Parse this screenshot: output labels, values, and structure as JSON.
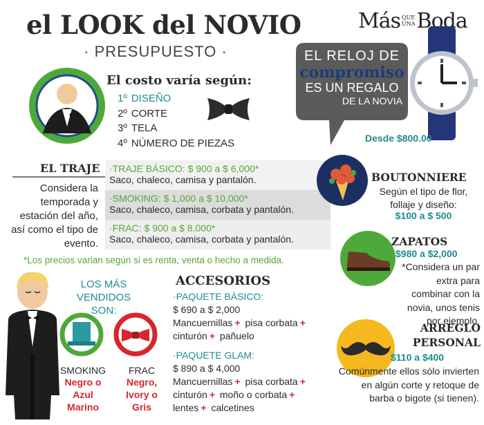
{
  "header": {
    "title": "el LOOK del NOVIO",
    "subtitle": "· PRESUPUESTO ·",
    "brand": {
      "first": "Más",
      "small_top": "QUE",
      "small_bottom": "UNA",
      "last": "Boda"
    }
  },
  "costo": {
    "title": "El costo varía según:",
    "items": [
      {
        "n": "1º",
        "label": "DISEÑO"
      },
      {
        "n": "2º",
        "label": "CORTE"
      },
      {
        "n": "3º",
        "label": "TELA"
      },
      {
        "n": "4º",
        "label": "NÚMERO DE PIEZAS"
      }
    ]
  },
  "reloj": {
    "lines": [
      "EL RELOJ DE",
      "compromiso",
      "ES UN REGALO",
      "DE LA NOVIA"
    ],
    "price": "Desde $800.00"
  },
  "traje": {
    "heading": "EL TRAJE",
    "description": "Considera la temporada y estación del año, así como el tipo de evento.",
    "options": [
      {
        "name": "·TRAJE BÁSICO: $ 900 a $ 6,000*",
        "desc": "Saco, chaleco, camisa y pantalón."
      },
      {
        "name": "·SMOKING: $ 1,000 a $ 10,000*",
        "desc": "Saco, chaleco, camisa, corbata y pantalón."
      },
      {
        "name": "·FRAC: $ 900 a $ 8,000*",
        "desc": "Saco, chaleco, camisa, corbata y pantalón."
      }
    ],
    "note": "*Los precios varian según si es renta, venta o hecho a medida."
  },
  "boutonniere": {
    "title": "BOUTONNIERE",
    "text": "Según el tipo de flor, follaje y diseño:",
    "price": "$100 a $ 500"
  },
  "zapatos": {
    "title": "ZAPATOS",
    "price": "$980 a $2,000",
    "text": "*Considera un par extra para combinar con la novia, unos tenis por ejemplo."
  },
  "arreglo": {
    "title": "ARREGLO PERSONAL",
    "price": "$110 a $400",
    "text": "Comúnmente ellos sólo invierten en algún corte y retoque de barba o bigote (si tienen)."
  },
  "mas_vendidos": {
    "title": "LOS MÁS VENDIDOS SON:",
    "items": [
      {
        "name": "SMOKING",
        "colors": "Negro o Azul Marino"
      },
      {
        "name": "FRAC",
        "colors": "Negro, Ivory o Gris"
      }
    ]
  },
  "accesorios": {
    "title": "ACCESORIOS",
    "separator": "+",
    "packages": [
      {
        "name": "·PAQUETE BÁSICO:",
        "price": "$ 690 a $ 2,000",
        "items": [
          "Mancuernillas",
          "pisa corbata",
          "cinturón",
          "pañuelo"
        ]
      },
      {
        "name": "·PAQUETE GLAM:",
        "price": "$ 890 a $ 4,000",
        "items": [
          "Mancuernillas",
          "pisa corbata",
          "cinturón",
          "moño o corbata",
          "lentes",
          "calcetines"
        ]
      }
    ]
  }
}
